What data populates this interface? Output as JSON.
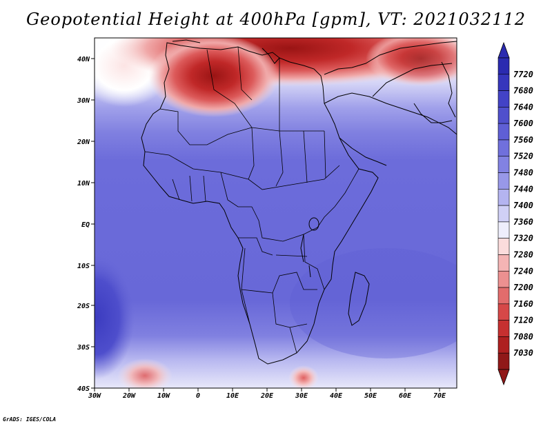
{
  "title": "Geopotential Height at 400hPa [gpm], VT: 2021032112",
  "credit": "GrADS: IGES/COLA",
  "x_ticks": [
    "30W",
    "20W",
    "10W",
    "0",
    "10E",
    "20E",
    "30E",
    "40E",
    "50E",
    "60E",
    "70E"
  ],
  "y_ticks": [
    "40N",
    "30N",
    "20N",
    "10N",
    "EQ",
    "10S",
    "20S",
    "30S",
    "40S"
  ],
  "colorbar": {
    "labels": [
      "7720",
      "7680",
      "7640",
      "7600",
      "7560",
      "7520",
      "7480",
      "7440",
      "7400",
      "7360",
      "7320",
      "7280",
      "7240",
      "7200",
      "7160",
      "7120",
      "7080",
      "7030"
    ],
    "colors": [
      "#2b2bb0",
      "#3636bc",
      "#4343c6",
      "#5050cc",
      "#5f5fd5",
      "#7070dc",
      "#8282e2",
      "#9898e8",
      "#b4b4f0",
      "#d0d0f6",
      "#eeeefc",
      "#fbdcdc",
      "#f4b4b4",
      "#ec9090",
      "#e26c6c",
      "#d64848",
      "#c63030",
      "#ae2020",
      "#901818"
    ]
  }
}
